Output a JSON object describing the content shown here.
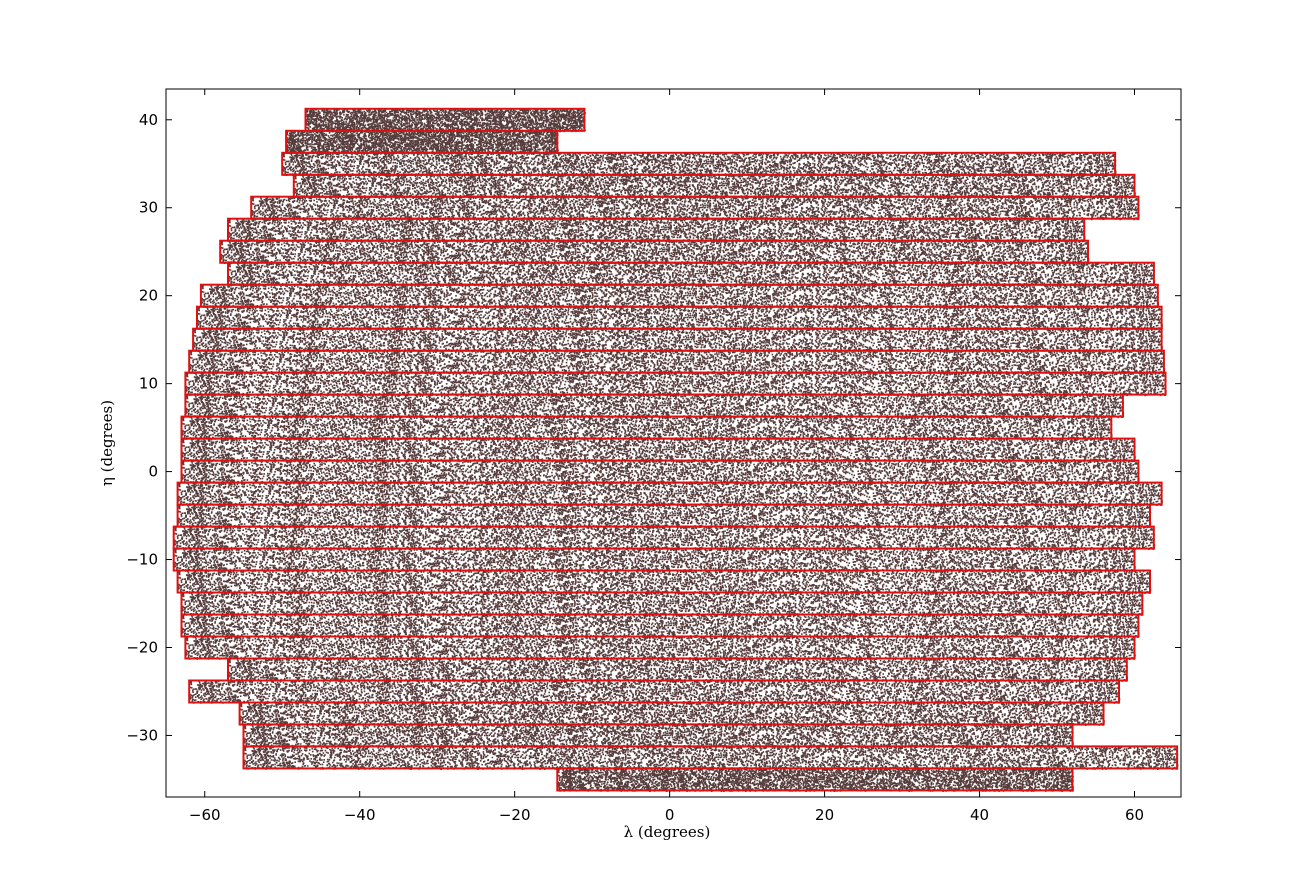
{
  "chart_data": {
    "type": "scatter",
    "title": "",
    "xlabel": "λ  (degrees)",
    "ylabel": "η  (degrees)",
    "xlim": [
      -65,
      66
    ],
    "ylim": [
      -37,
      43.5
    ],
    "xticks": [
      -60,
      -40,
      -20,
      0,
      20,
      40,
      60
    ],
    "yticks": [
      -30,
      -20,
      -10,
      0,
      10,
      20,
      30,
      40
    ],
    "xtick_labels": [
      "−60",
      "−40",
      "−20",
      "0",
      "20",
      "40",
      "60"
    ],
    "ytick_labels": [
      "−30",
      "−20",
      "−10",
      "0",
      "10",
      "20",
      "30",
      "40"
    ],
    "grid": false,
    "legend": "none",
    "colors": {
      "points": "#3a1a1a",
      "stripes": "#e01010",
      "axes": "#000000"
    },
    "stripe_height_deg": 2.5,
    "stripes": [
      {
        "eta_center": 40.0,
        "lambda_min": -47,
        "lambda_max": -11
      },
      {
        "eta_center": 37.5,
        "lambda_min": -49.5,
        "lambda_max": -14.5
      },
      {
        "eta_center": 35.0,
        "lambda_min": -50,
        "lambda_max": 57.5
      },
      {
        "eta_center": 32.5,
        "lambda_min": -48.5,
        "lambda_max": 60
      },
      {
        "eta_center": 30.0,
        "lambda_min": -54,
        "lambda_max": 60.5
      },
      {
        "eta_center": 27.5,
        "lambda_min": -57,
        "lambda_max": 53.5
      },
      {
        "eta_center": 25.0,
        "lambda_min": -58,
        "lambda_max": 54
      },
      {
        "eta_center": 22.5,
        "lambda_min": -57,
        "lambda_max": 62.5
      },
      {
        "eta_center": 20.0,
        "lambda_min": -60.5,
        "lambda_max": 63
      },
      {
        "eta_center": 17.5,
        "lambda_min": -61,
        "lambda_max": 63.5
      },
      {
        "eta_center": 15.0,
        "lambda_min": -61.5,
        "lambda_max": 63.5
      },
      {
        "eta_center": 12.5,
        "lambda_min": -62,
        "lambda_max": 63.8
      },
      {
        "eta_center": 10.0,
        "lambda_min": -62.5,
        "lambda_max": 64
      },
      {
        "eta_center": 7.5,
        "lambda_min": -62.5,
        "lambda_max": 58.5
      },
      {
        "eta_center": 5.0,
        "lambda_min": -63,
        "lambda_max": 57
      },
      {
        "eta_center": 2.5,
        "lambda_min": -63,
        "lambda_max": 60
      },
      {
        "eta_center": 0.0,
        "lambda_min": -63,
        "lambda_max": 60.5
      },
      {
        "eta_center": -2.5,
        "lambda_min": -63.5,
        "lambda_max": 63.5
      },
      {
        "eta_center": -5.0,
        "lambda_min": -63.5,
        "lambda_max": 62
      },
      {
        "eta_center": -7.5,
        "lambda_min": -64,
        "lambda_max": 62.5
      },
      {
        "eta_center": -10.0,
        "lambda_min": -64,
        "lambda_max": 60
      },
      {
        "eta_center": -12.5,
        "lambda_min": -63.5,
        "lambda_max": 62
      },
      {
        "eta_center": -15.0,
        "lambda_min": -63,
        "lambda_max": 61
      },
      {
        "eta_center": -17.5,
        "lambda_min": -63,
        "lambda_max": 60.5
      },
      {
        "eta_center": -20.0,
        "lambda_min": -62.5,
        "lambda_max": 60
      },
      {
        "eta_center": -22.5,
        "lambda_min": -57,
        "lambda_max": 59
      },
      {
        "eta_center": -25.0,
        "lambda_min": -62,
        "lambda_max": 58
      },
      {
        "eta_center": -27.5,
        "lambda_min": -55.5,
        "lambda_max": 56
      },
      {
        "eta_center": -30.0,
        "lambda_min": -55,
        "lambda_max": 52
      },
      {
        "eta_center": -32.5,
        "lambda_min": -55,
        "lambda_max": 65.5
      },
      {
        "eta_center": -35.0,
        "lambda_min": -14.5,
        "lambda_max": 52
      }
    ]
  }
}
